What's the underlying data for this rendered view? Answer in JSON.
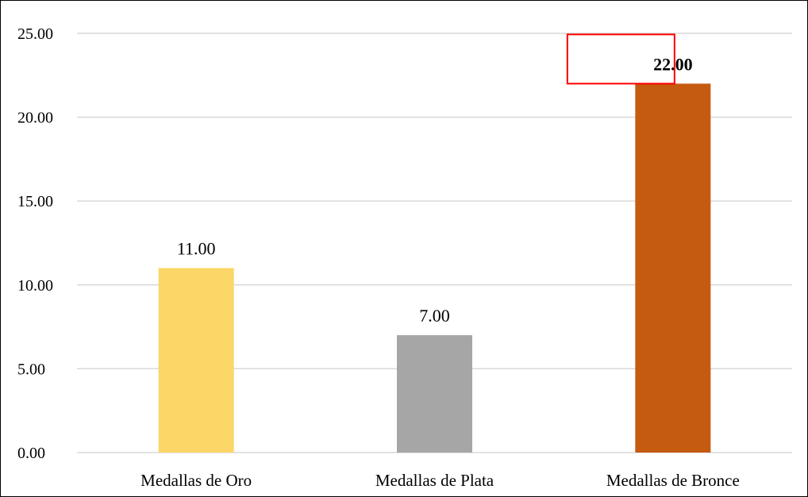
{
  "chart_data": {
    "type": "bar",
    "categories": [
      "Medallas de Oro",
      "Medallas de Plata",
      "Medallas de Bronce"
    ],
    "values": [
      11,
      7,
      22
    ],
    "data_labels": [
      "11.00",
      "7.00",
      "22.00"
    ],
    "bar_colors": [
      "#FCD666",
      "#A6A6A6",
      "#C55A11"
    ],
    "highlighted_category": "Medallas de Bronce",
    "highlight_color": "#FF0000",
    "title": "",
    "xlabel": "",
    "ylabel": "",
    "ylim": [
      0,
      25
    ],
    "yticks": [
      0,
      5,
      10,
      15,
      20,
      25
    ],
    "ytick_labels": [
      "0.00",
      "5.00",
      "10.00",
      "15.00",
      "20.00",
      "25.00"
    ],
    "grid": true,
    "grid_color": "#D9D9D9",
    "legend": "none"
  }
}
